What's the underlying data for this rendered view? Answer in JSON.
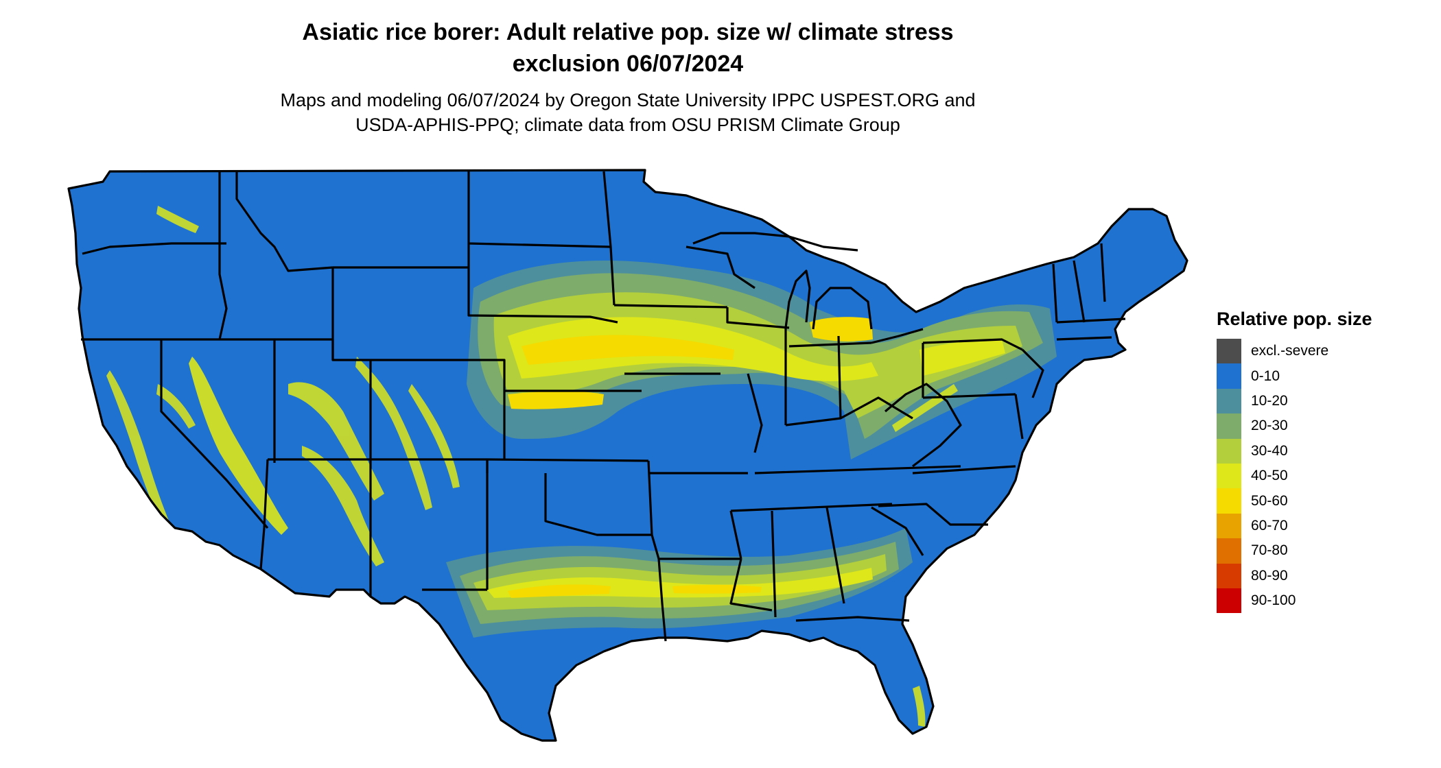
{
  "title": {
    "line1": "Asiatic rice borer: Adult relative pop. size w/ climate stress",
    "line2": "exclusion 06/07/2024"
  },
  "subtitle": {
    "line1": "Maps and modeling 06/07/2024 by Oregon State University IPPC USPEST.ORG and",
    "line2": "USDA-APHIS-PPQ; climate data from OSU PRISM Climate Group"
  },
  "colors": {
    "base": "#1f72cf",
    "c10_20": "#4e8f9e",
    "c20_30": "#7eac6a",
    "c30_40": "#b3cf3c",
    "c40_50": "#dde71a",
    "c50_60": "#f5db00",
    "border": "#000000"
  },
  "legend": {
    "title": "Relative pop. size",
    "items": [
      {
        "label": "excl.-severe",
        "color": "#4d4d4d"
      },
      {
        "label": "0-10",
        "color": "#1f72cf"
      },
      {
        "label": "10-20",
        "color": "#4e8f9e"
      },
      {
        "label": "20-30",
        "color": "#7eac6a"
      },
      {
        "label": "30-40",
        "color": "#b3cf3c"
      },
      {
        "label": "40-50",
        "color": "#dde71a"
      },
      {
        "label": "50-60",
        "color": "#f5db00"
      },
      {
        "label": "60-70",
        "color": "#e8a300"
      },
      {
        "label": "70-80",
        "color": "#e07000"
      },
      {
        "label": "80-90",
        "color": "#d83b00"
      },
      {
        "label": "90-100",
        "color": "#cc0000"
      }
    ]
  }
}
